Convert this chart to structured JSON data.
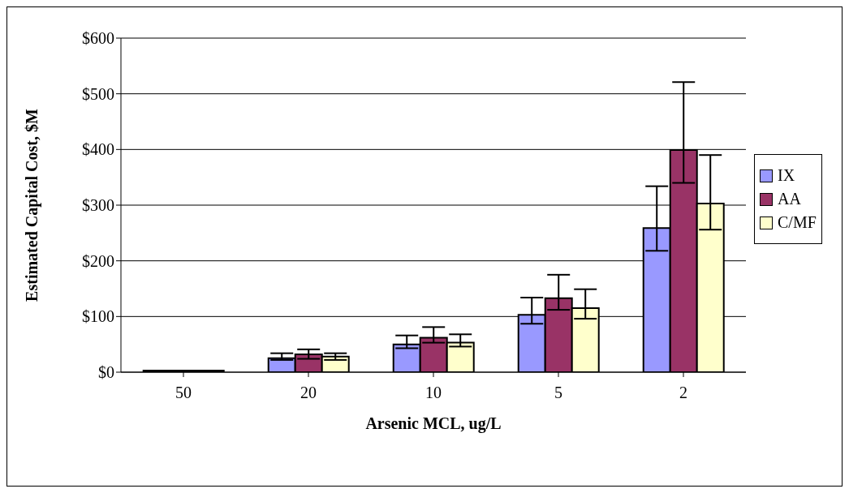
{
  "chart_data": {
    "type": "bar",
    "xlabel": "Arsenic MCL, ug/L",
    "ylabel": "Estimated Capital Cost, $M",
    "categories": [
      "50",
      "20",
      "10",
      "5",
      "2"
    ],
    "series": [
      {
        "name": "IX",
        "color": "#9999ff",
        "values": [
          3,
          25,
          50,
          103,
          259
        ],
        "errors": [
          null,
          [
            22,
            34
          ],
          [
            43,
            66
          ],
          [
            87,
            134
          ],
          [
            218,
            334
          ]
        ]
      },
      {
        "name": "AA",
        "color": "#993366",
        "values": [
          3,
          32,
          62,
          133,
          399
        ],
        "errors": [
          null,
          [
            24,
            41
          ],
          [
            53,
            81
          ],
          [
            112,
            175
          ],
          [
            340,
            521
          ]
        ]
      },
      {
        "name": "C/MF",
        "color": "#ffffcc",
        "values": [
          3,
          28,
          53,
          115,
          303
        ],
        "errors": [
          null,
          [
            22,
            34
          ],
          [
            46,
            68
          ],
          [
            96,
            149
          ],
          [
            256,
            390
          ]
        ]
      }
    ],
    "ylim": [
      0,
      600
    ],
    "yticks": [
      {
        "value": 0,
        "label": "$0"
      },
      {
        "value": 100,
        "label": "$100"
      },
      {
        "value": 200,
        "label": "$200"
      },
      {
        "value": 300,
        "label": "$300"
      },
      {
        "value": 400,
        "label": "$400"
      },
      {
        "value": 500,
        "label": "$500"
      },
      {
        "value": 600,
        "label": "$600"
      }
    ],
    "grid": "y",
    "legend": "right"
  }
}
